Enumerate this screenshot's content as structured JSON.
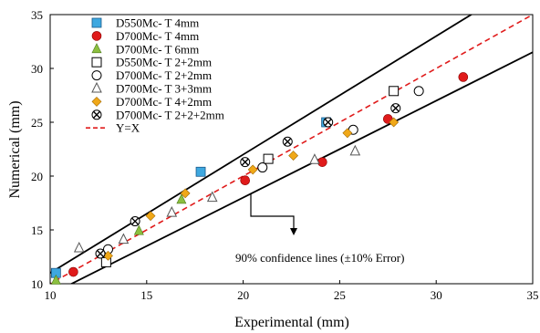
{
  "chart_data": {
    "type": "scatter",
    "xlabel": "Experimental  (mm)",
    "ylabel": "Numerical  (mm)",
    "xlim": [
      10,
      35
    ],
    "ylim": [
      10,
      35
    ],
    "x_ticks": [
      "10",
      "15",
      "20",
      "25",
      "30",
      "35"
    ],
    "y_ticks": [
      "10",
      "15",
      "20",
      "25",
      "30",
      "35"
    ],
    "grid": false,
    "legend_position": "top-left",
    "annotation": "90% confidence lines (±10% Error)",
    "series": [
      {
        "name": "D550Mc- T 4mm",
        "marker": "square",
        "color": "#3ea8e0",
        "points": [
          [
            10.3,
            11.0
          ],
          [
            17.8,
            20.4
          ],
          [
            24.3,
            25.0
          ]
        ]
      },
      {
        "name": "D700Mc- T 4mm",
        "marker": "circle",
        "color": "#e01b1b",
        "points": [
          [
            11.2,
            11.1
          ],
          [
            20.1,
            19.6
          ],
          [
            24.1,
            21.3
          ],
          [
            27.5,
            25.3
          ],
          [
            31.4,
            29.2
          ]
        ]
      },
      {
        "name": "D700Mc- T 6mm",
        "marker": "triangle",
        "color": "#8cbf3f",
        "points": [
          [
            10.3,
            10.3
          ],
          [
            14.6,
            14.9
          ],
          [
            16.8,
            17.8
          ]
        ]
      },
      {
        "name": "D550Mc- T 2+2mm",
        "marker": "open-square",
        "color": "#000000",
        "points": [
          [
            12.9,
            12.0
          ],
          [
            21.3,
            21.6
          ],
          [
            27.8,
            27.9
          ]
        ]
      },
      {
        "name": "D700Mc- T 2+2mm",
        "marker": "open-circle",
        "color": "#000000",
        "points": [
          [
            13.0,
            13.2
          ],
          [
            21.0,
            20.8
          ],
          [
            25.7,
            24.3
          ],
          [
            29.1,
            27.9
          ]
        ]
      },
      {
        "name": "D700Mc- T 3+3mm",
        "marker": "open-triangle",
        "color": "#000000",
        "points": [
          [
            11.5,
            13.3
          ],
          [
            13.8,
            14.1
          ],
          [
            16.3,
            16.6
          ],
          [
            18.4,
            18.0
          ],
          [
            23.7,
            21.5
          ],
          [
            25.8,
            22.3
          ]
        ]
      },
      {
        "name": "D700Mc- T 4+2mm",
        "marker": "diamond",
        "color": "#f0a818",
        "points": [
          [
            13.0,
            12.6
          ],
          [
            15.2,
            16.3
          ],
          [
            17.0,
            18.4
          ],
          [
            20.5,
            20.6
          ],
          [
            22.6,
            21.9
          ],
          [
            25.4,
            24.0
          ],
          [
            27.8,
            25.0
          ]
        ]
      },
      {
        "name": "D700Mc- T 2+2+2mm",
        "marker": "x-circle",
        "color": "#000000",
        "points": [
          [
            12.6,
            12.8
          ],
          [
            14.4,
            15.8
          ],
          [
            20.1,
            21.3
          ],
          [
            22.3,
            23.2
          ],
          [
            24.4,
            25.0
          ],
          [
            27.9,
            26.3
          ]
        ]
      },
      {
        "name": "Y=X",
        "marker": "dashed-line",
        "color": "#e01b1b",
        "points": []
      }
    ]
  }
}
